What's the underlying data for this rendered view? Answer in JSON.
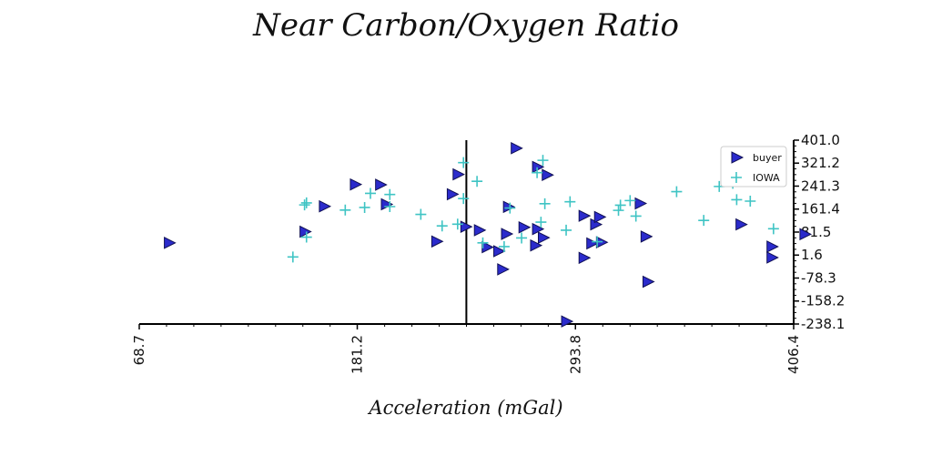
{
  "chart_data": {
    "type": "scatter",
    "title": "Near Carbon/Oxygen Ratio",
    "xlabel": "Acceleration (mGal)",
    "ylabel": "",
    "xlim": [
      68.7,
      406.4
    ],
    "ylim": [
      -238.1,
      401.0
    ],
    "x_ticks": [
      "68.7",
      "181.2",
      "293.8",
      "406.4"
    ],
    "y_ticks": [
      "401.0",
      "321.2",
      "241.3",
      "161.4",
      "81.5",
      "1.6",
      "-78.3",
      "-158.2",
      "-238.1"
    ],
    "vertical_line_x": 237.5,
    "legend_position": "top-right",
    "series": [
      {
        "name": "buyer",
        "marker": "triangle-right",
        "color": "#2b2bcc",
        "points": [
          [
            84,
            44
          ],
          [
            164,
            171
          ],
          [
            180,
            247
          ],
          [
            193,
            246
          ],
          [
            196,
            178
          ],
          [
            154,
            83
          ],
          [
            222,
            49
          ],
          [
            233,
            282
          ],
          [
            230,
            213
          ],
          [
            237,
            100
          ],
          [
            244,
            88
          ],
          [
            248,
            29
          ],
          [
            254,
            15
          ],
          [
            256,
            -48
          ],
          [
            258,
            75
          ],
          [
            259,
            169
          ],
          [
            263,
            373
          ],
          [
            267,
            98
          ],
          [
            273,
            35
          ],
          [
            274,
            92
          ],
          [
            274,
            308
          ],
          [
            277,
            62
          ],
          [
            279,
            280
          ],
          [
            298,
            138
          ],
          [
            298,
            -8
          ],
          [
            302,
            42
          ],
          [
            304,
            108
          ],
          [
            306,
            134
          ],
          [
            307,
            46
          ],
          [
            289,
            -229
          ],
          [
            327,
            181
          ],
          [
            330,
            66
          ],
          [
            331,
            -91
          ],
          [
            379,
            108
          ],
          [
            395,
            31
          ],
          [
            395,
            -7
          ],
          [
            412,
            74
          ]
        ]
      },
      {
        "name": "IOWA",
        "marker": "plus",
        "color": "#3fc4c4",
        "points": [
          [
            148,
            -5
          ],
          [
            154,
            176
          ],
          [
            155,
            183
          ],
          [
            155,
            64
          ],
          [
            175,
            158
          ],
          [
            185,
            167
          ],
          [
            188,
            216
          ],
          [
            198,
            212
          ],
          [
            198,
            170
          ],
          [
            214,
            143
          ],
          [
            225,
            103
          ],
          [
            233,
            109
          ],
          [
            236,
            323
          ],
          [
            236,
            198
          ],
          [
            243,
            258
          ],
          [
            246,
            44
          ],
          [
            257,
            31
          ],
          [
            260,
            165
          ],
          [
            266,
            61
          ],
          [
            274,
            288
          ],
          [
            276,
            116
          ],
          [
            277,
            331
          ],
          [
            278,
            180
          ],
          [
            289,
            88
          ],
          [
            291,
            187
          ],
          [
            305,
            48
          ],
          [
            316,
            157
          ],
          [
            317,
            175
          ],
          [
            322,
            191
          ],
          [
            325,
            137
          ],
          [
            346,
            222
          ],
          [
            360,
            122
          ],
          [
            368,
            240
          ],
          [
            375,
            251
          ],
          [
            377,
            194
          ],
          [
            384,
            189
          ],
          [
            396,
            93
          ]
        ]
      }
    ]
  }
}
